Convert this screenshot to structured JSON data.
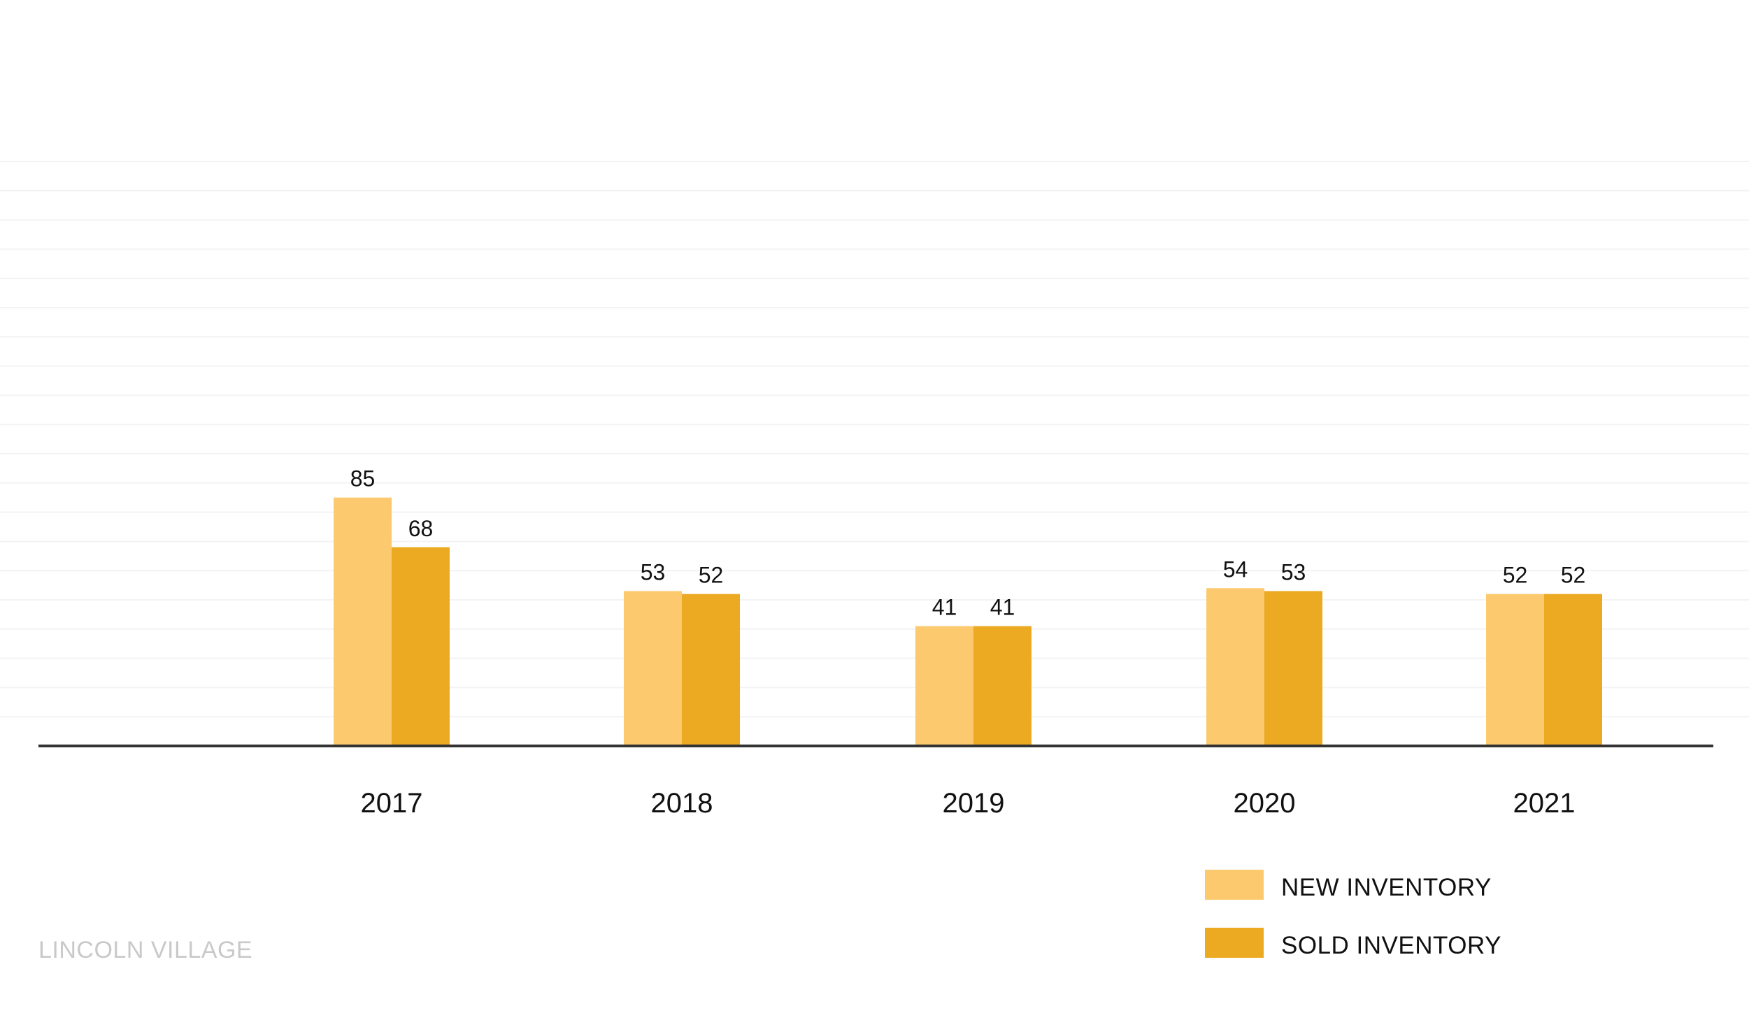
{
  "chart_data": {
    "type": "bar",
    "categories": [
      "2017",
      "2018",
      "2019",
      "2020",
      "2021"
    ],
    "series": [
      {
        "name": "NEW INVENTORY",
        "values": [
          85,
          53,
          41,
          54,
          52
        ],
        "color": "#fcc96f"
      },
      {
        "name": "SOLD INVENTORY",
        "values": [
          68,
          52,
          41,
          53,
          52
        ],
        "color": "#ebaa22"
      }
    ],
    "title": "",
    "xlabel": "",
    "ylabel": "",
    "ylim": [
      0,
      200
    ],
    "grid": true,
    "legend_position": "bottom-right"
  },
  "footer": {
    "label": "LINCOLN VILLAGE"
  },
  "colors": {
    "axis": "#333333",
    "grid": "#f3f3f3",
    "footer": "#c9c9c9"
  }
}
